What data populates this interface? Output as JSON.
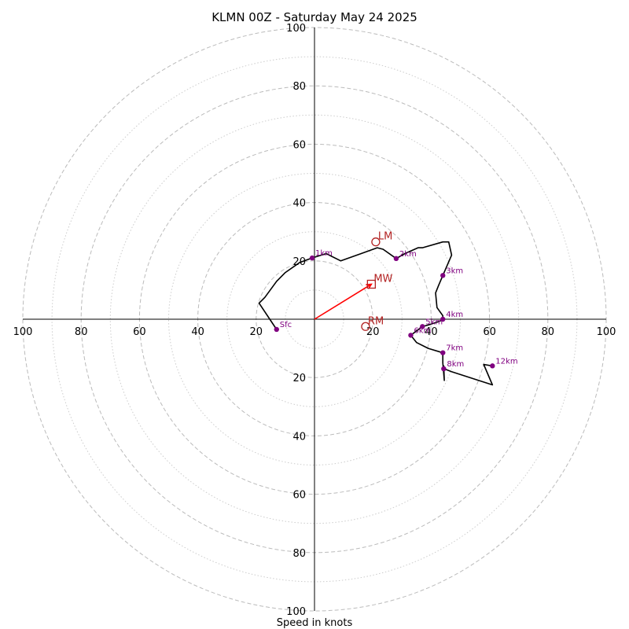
{
  "chart_data": {
    "type": "hodograph",
    "title": "KLMN 00Z - Saturday May 24 2025",
    "xlabel": "Speed in knots",
    "range_max": 100,
    "rings_major": [
      20,
      40,
      60,
      80,
      100
    ],
    "rings_minor": [
      10,
      30,
      50,
      70,
      90
    ],
    "tick_labels": {
      "left": [
        "100",
        "80",
        "60",
        "40",
        "20"
      ],
      "right": [
        "20",
        "40",
        "60",
        "80",
        "100"
      ],
      "top": [
        "20",
        "40",
        "60",
        "80",
        "100"
      ],
      "bottom": [
        "20",
        "40",
        "60",
        "80",
        "100"
      ]
    },
    "trace": [
      [
        -13,
        -3.5
      ],
      [
        -19,
        5.5
      ],
      [
        -17,
        7.5
      ],
      [
        -13,
        13
      ],
      [
        -10,
        16
      ],
      [
        -5,
        19.5
      ],
      [
        -0.8,
        21
      ],
      [
        4,
        22.5
      ],
      [
        9,
        20
      ],
      [
        16,
        22.5
      ],
      [
        21.5,
        24.5
      ],
      [
        23.5,
        24
      ],
      [
        28,
        20.8
      ],
      [
        31,
        22.5
      ],
      [
        35.5,
        24.5
      ],
      [
        37,
        24.5
      ],
      [
        44,
        26.5
      ],
      [
        46,
        26.5
      ],
      [
        47,
        22
      ],
      [
        44,
        15
      ],
      [
        42.5,
        11.5
      ],
      [
        41.5,
        9
      ],
      [
        42,
        4
      ],
      [
        44,
        1.2
      ],
      [
        44,
        -0.2
      ],
      [
        42,
        -1
      ],
      [
        39,
        -2
      ],
      [
        37,
        -2.5
      ],
      [
        35,
        -4
      ],
      [
        33,
        -5.5
      ],
      [
        35,
        -8
      ],
      [
        39,
        -10
      ],
      [
        44,
        -11.5
      ],
      [
        44,
        -15
      ],
      [
        44.5,
        -21
      ],
      [
        44.3,
        -16
      ],
      [
        44.5,
        -17
      ],
      [
        47,
        -18
      ],
      [
        61,
        -22.5
      ],
      [
        58,
        -15.5
      ],
      [
        61,
        -16
      ]
    ],
    "heights": [
      {
        "label": "Sfc",
        "u": -13,
        "v": -3.5
      },
      {
        "label": "1km",
        "u": -0.8,
        "v": 21
      },
      {
        "label": "2km",
        "u": 28,
        "v": 20.8
      },
      {
        "label": "3km",
        "u": 44,
        "v": 15
      },
      {
        "label": "4km",
        "u": 44,
        "v": 0
      },
      {
        "label": "5km",
        "u": 37,
        "v": -2.5
      },
      {
        "label": "6km",
        "u": 33,
        "v": -5.5
      },
      {
        "label": "7km",
        "u": 44,
        "v": -11.5
      },
      {
        "label": "8km",
        "u": 44.3,
        "v": -17
      },
      {
        "label": "12km",
        "u": 61,
        "v": -16
      }
    ],
    "markers": [
      {
        "label": "LM",
        "shape": "circle",
        "u": 21,
        "v": 26.5
      },
      {
        "label": "MW",
        "shape": "square",
        "u": 19.5,
        "v": 12
      },
      {
        "label": "RM",
        "shape": "circle",
        "u": 17.5,
        "v": -2.5
      }
    ],
    "shear_vector": {
      "from": [
        0,
        0
      ],
      "to": [
        19.5,
        12
      ]
    },
    "colors": {
      "trace": "#000000",
      "height_points": "#800080",
      "markers": "#b22222",
      "shear_vector": "#ff0000",
      "grid": "#bbbbbb"
    }
  }
}
